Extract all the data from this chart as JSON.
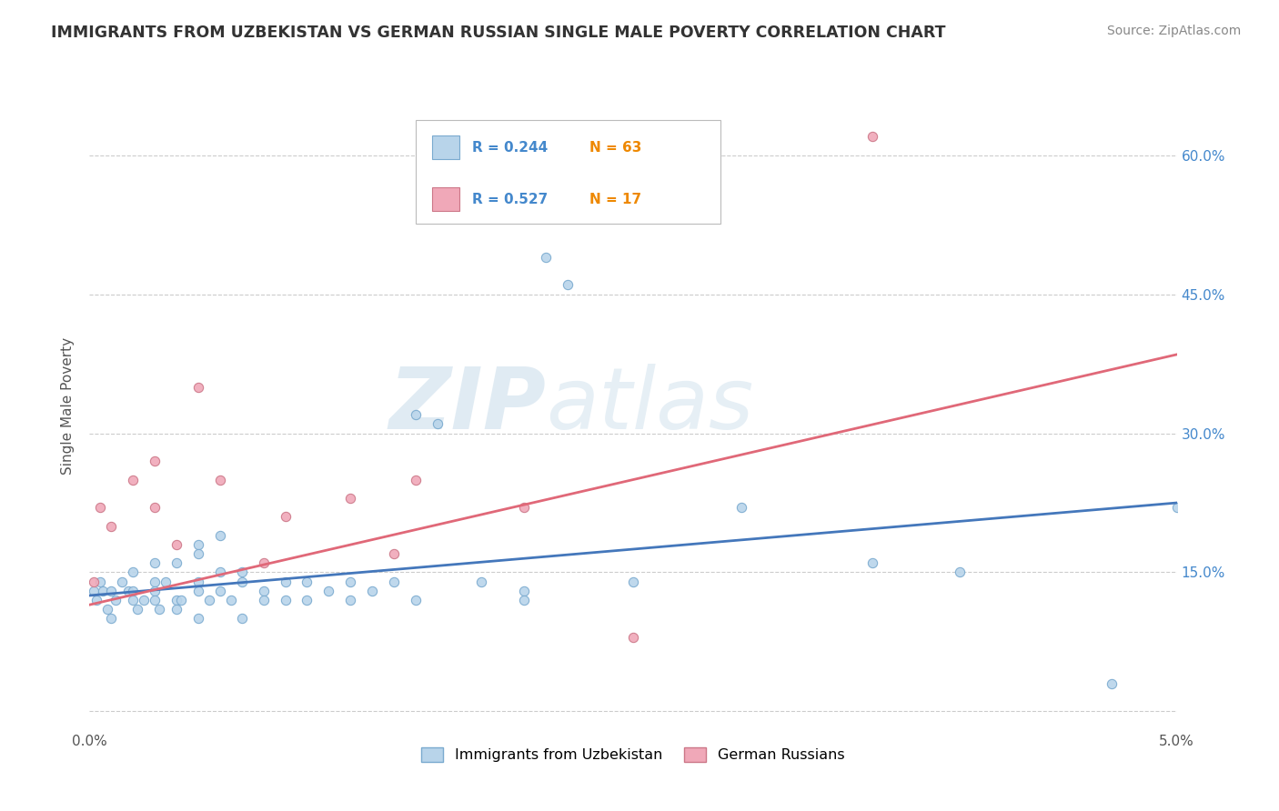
{
  "title": "IMMIGRANTS FROM UZBEKISTAN VS GERMAN RUSSIAN SINGLE MALE POVERTY CORRELATION CHART",
  "source": "Source: ZipAtlas.com",
  "ylabel": "Single Male Poverty",
  "xlim": [
    0.0,
    0.05
  ],
  "ylim": [
    -0.02,
    0.68
  ],
  "xtick_positions": [
    0.0,
    0.01,
    0.02,
    0.03,
    0.04,
    0.05
  ],
  "xtick_labels": [
    "0.0%",
    "",
    "",
    "",
    "",
    "5.0%"
  ],
  "ytick_positions": [
    0.0,
    0.15,
    0.3,
    0.45,
    0.6
  ],
  "ytick_labels_right": [
    "",
    "15.0%",
    "30.0%",
    "45.0%",
    "60.0%"
  ],
  "series1": {
    "label": "Immigrants from Uzbekistan",
    "color": "#b8d4ea",
    "edge_color": "#7aaacf",
    "line_color": "#4477bb",
    "R": 0.244,
    "N": 63,
    "x": [
      0.0002,
      0.0003,
      0.0005,
      0.0006,
      0.0008,
      0.001,
      0.001,
      0.0012,
      0.0015,
      0.0018,
      0.002,
      0.002,
      0.002,
      0.0022,
      0.0025,
      0.003,
      0.003,
      0.003,
      0.003,
      0.0032,
      0.0035,
      0.004,
      0.004,
      0.004,
      0.0042,
      0.005,
      0.005,
      0.005,
      0.005,
      0.005,
      0.0055,
      0.006,
      0.006,
      0.006,
      0.0065,
      0.007,
      0.007,
      0.007,
      0.008,
      0.008,
      0.009,
      0.009,
      0.01,
      0.01,
      0.011,
      0.012,
      0.012,
      0.013,
      0.014,
      0.015,
      0.015,
      0.016,
      0.018,
      0.02,
      0.02,
      0.021,
      0.022,
      0.025,
      0.03,
      0.036,
      0.04,
      0.047,
      0.05
    ],
    "y": [
      0.13,
      0.12,
      0.14,
      0.13,
      0.11,
      0.13,
      0.1,
      0.12,
      0.14,
      0.13,
      0.15,
      0.13,
      0.12,
      0.11,
      0.12,
      0.16,
      0.14,
      0.13,
      0.12,
      0.11,
      0.14,
      0.16,
      0.12,
      0.11,
      0.12,
      0.18,
      0.17,
      0.14,
      0.13,
      0.1,
      0.12,
      0.19,
      0.15,
      0.13,
      0.12,
      0.15,
      0.14,
      0.1,
      0.13,
      0.12,
      0.14,
      0.12,
      0.14,
      0.12,
      0.13,
      0.14,
      0.12,
      0.13,
      0.14,
      0.12,
      0.32,
      0.31,
      0.14,
      0.13,
      0.12,
      0.49,
      0.46,
      0.14,
      0.22,
      0.16,
      0.15,
      0.03,
      0.22
    ],
    "line_x": [
      0.0,
      0.05
    ],
    "line_y": [
      0.125,
      0.225
    ]
  },
  "series2": {
    "label": "German Russians",
    "color": "#f0a8b8",
    "edge_color": "#cc7788",
    "line_color": "#e06878",
    "R": 0.527,
    "N": 17,
    "x": [
      0.0002,
      0.0005,
      0.001,
      0.002,
      0.003,
      0.003,
      0.004,
      0.005,
      0.006,
      0.008,
      0.009,
      0.012,
      0.014,
      0.015,
      0.02,
      0.025,
      0.036
    ],
    "y": [
      0.14,
      0.22,
      0.2,
      0.25,
      0.22,
      0.27,
      0.18,
      0.35,
      0.25,
      0.16,
      0.21,
      0.23,
      0.17,
      0.25,
      0.22,
      0.08,
      0.62
    ],
    "line_x": [
      0.0,
      0.05
    ],
    "line_y": [
      0.115,
      0.385
    ]
  },
  "background_color": "#ffffff",
  "grid_color": "#cccccc",
  "title_color": "#333333",
  "legend_r_color": "#4488cc",
  "legend_n_color": "#ee8800",
  "watermark_color": "#dce8f0"
}
